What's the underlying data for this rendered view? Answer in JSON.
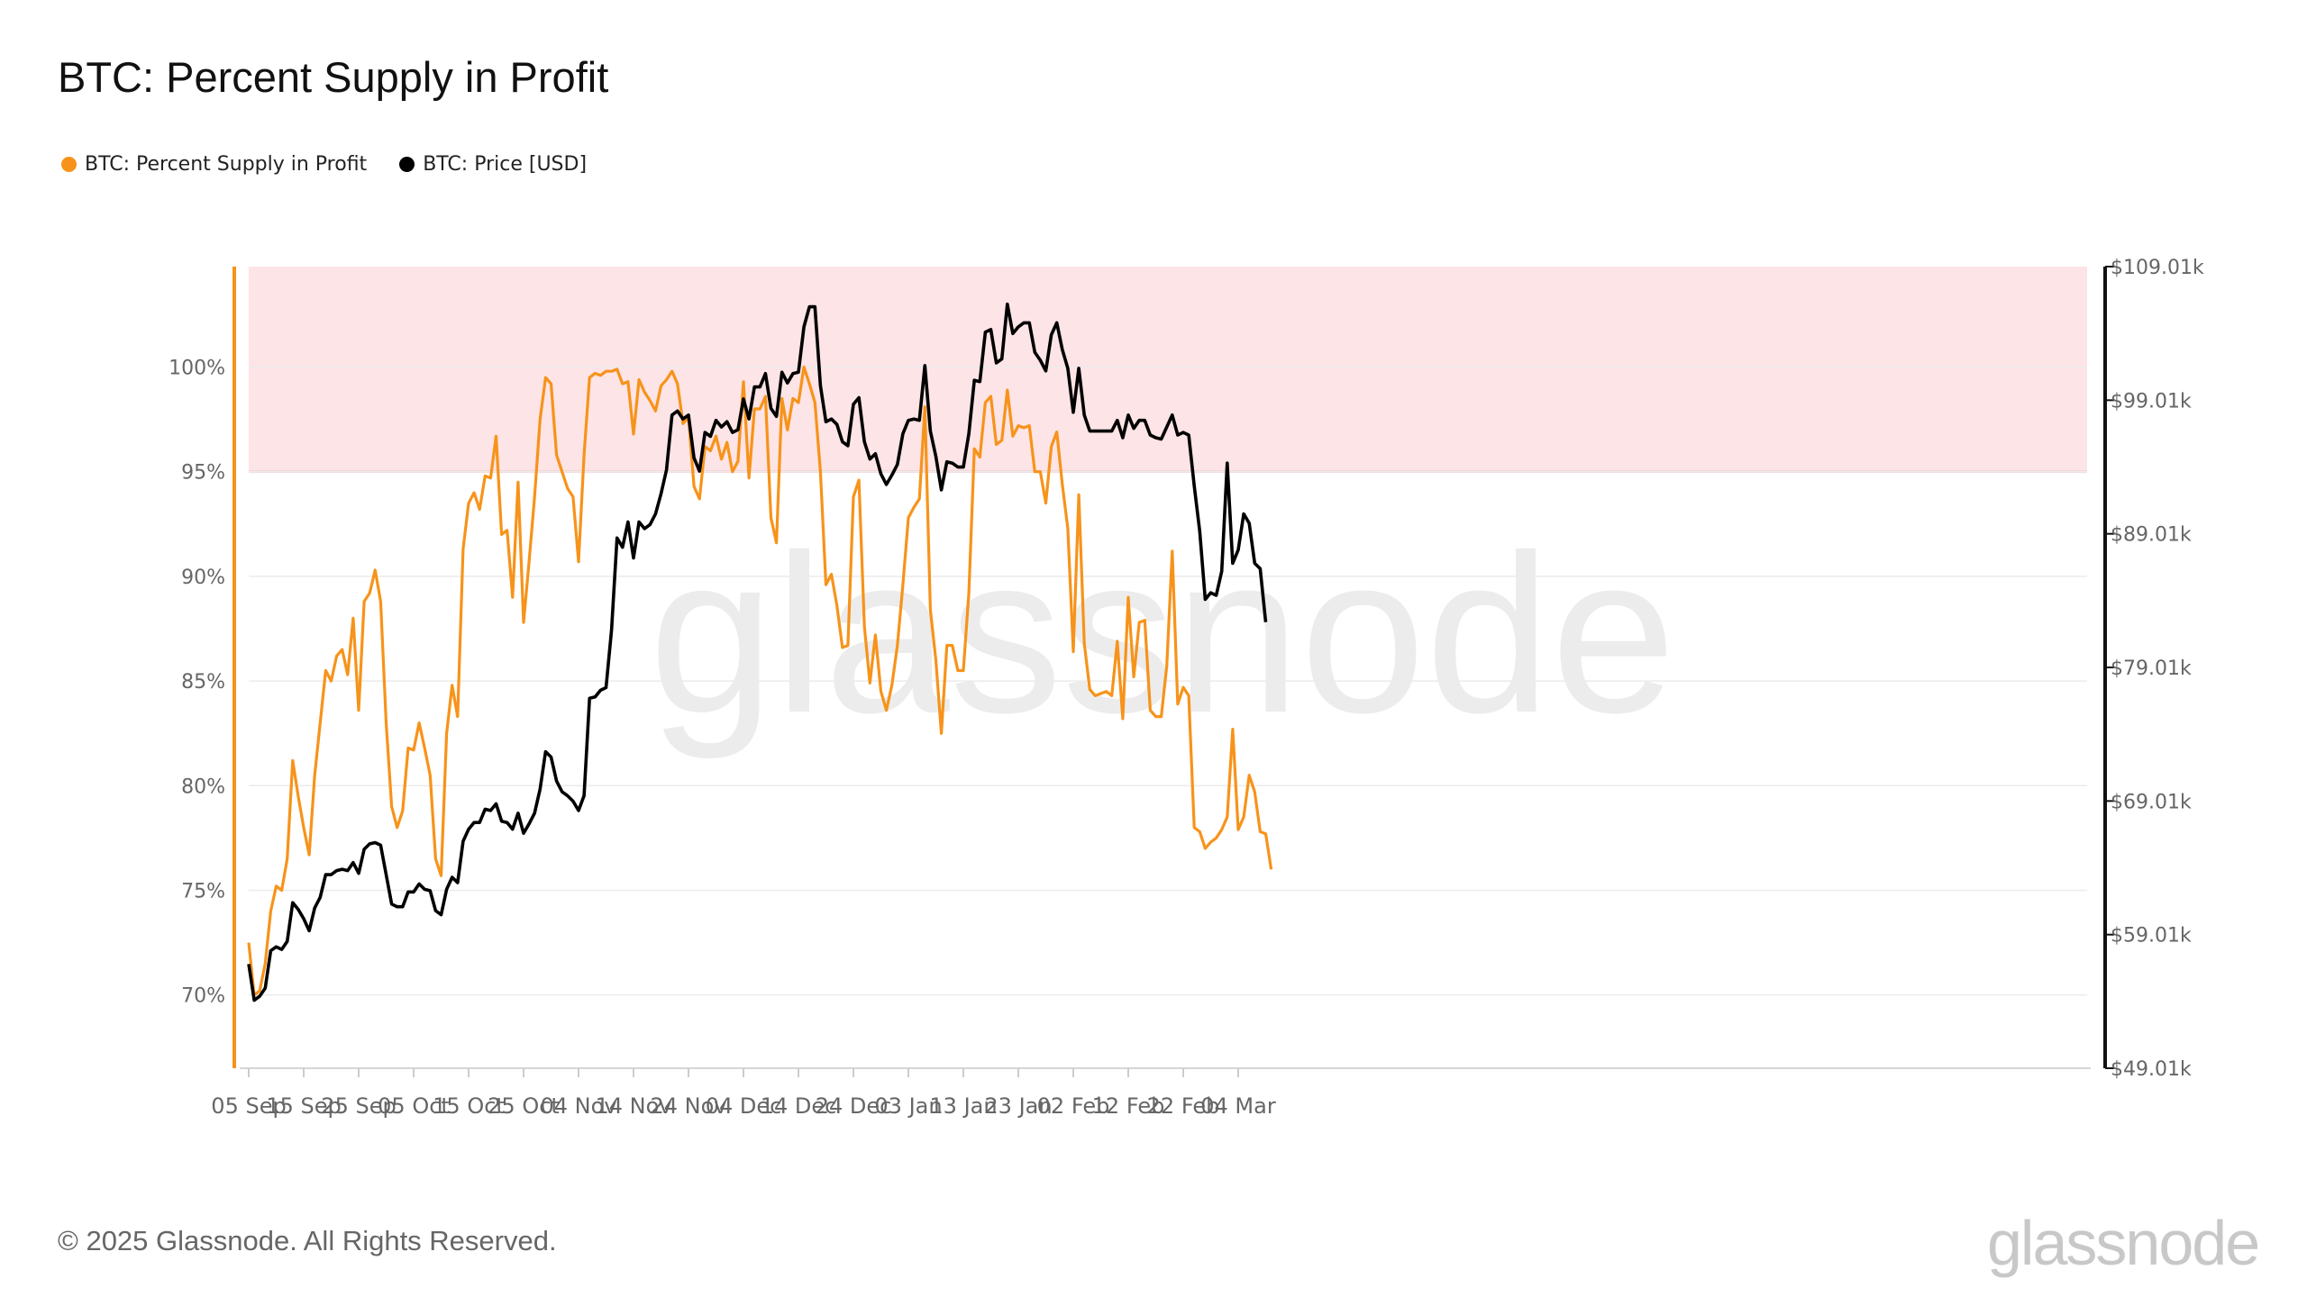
{
  "title": "BTC: Percent Supply in Profit",
  "footer": "© 2025 Glassnode. All Rights Reserved.",
  "brand": "glassnode",
  "watermark": "glassnode",
  "legend": [
    {
      "label": "BTC: Percent Supply in Profit",
      "color": "#f7931a"
    },
    {
      "label": "BTC: Price [USD]",
      "color": "#000000"
    }
  ],
  "chart_data": {
    "type": "line",
    "x_start": "2024-09-05",
    "x_ticks": [
      "05 Sep",
      "15 Sep",
      "25 Sep",
      "05 Oct",
      "15 Oct",
      "25 Oct",
      "04 Nov",
      "14 Nov",
      "24 Nov",
      "04 Dec",
      "14 Dec",
      "24 Dec",
      "03 Jan",
      "13 Jan",
      "23 Jan",
      "02 Feb",
      "12 Feb",
      "22 Feb",
      "04 Mar"
    ],
    "y_left": {
      "ticks": [
        70,
        75,
        80,
        85,
        90,
        95,
        100
      ],
      "labels": [
        "70%",
        "75%",
        "80%",
        "85%",
        "90%",
        "95%",
        "100%"
      ],
      "range": [
        66.5,
        104.8
      ]
    },
    "y_right": {
      "ticks": [
        49.01,
        59.01,
        69.01,
        79.01,
        89.01,
        99.01,
        109.01
      ],
      "labels": [
        "$49.01k",
        "$59.01k",
        "$69.01k",
        "$79.01k",
        "$89.01k",
        "$99.01k",
        "$109.01k"
      ],
      "range": [
        49.01,
        109.01
      ]
    },
    "shaded_region": {
      "from": 95,
      "to": 104.8,
      "axis": "left",
      "color": "#fde4e6",
      "line_color": "#f2a2a8"
    },
    "grid": true,
    "legend_position": "top-left",
    "series": [
      {
        "name": "BTC: Percent Supply in Profit",
        "axis": "left",
        "color": "#f7931a",
        "values": [
          72.5,
          70.0,
          70.2,
          71.5,
          74.0,
          75.2,
          75.0,
          76.5,
          81.2,
          79.5,
          78.0,
          76.7,
          80.5,
          83.0,
          85.5,
          85.0,
          86.2,
          86.5,
          85.3,
          88.0,
          83.6,
          88.8,
          89.2,
          90.3,
          88.8,
          83.0,
          79.0,
          78.0,
          78.8,
          81.8,
          81.7,
          83.0,
          81.8,
          80.5,
          76.5,
          75.7,
          82.5,
          84.8,
          83.3,
          91.3,
          93.5,
          94.0,
          93.2,
          94.8,
          94.7,
          96.7,
          92.0,
          92.2,
          89.0,
          94.5,
          87.8,
          90.7,
          93.8,
          97.5,
          99.5,
          99.2,
          95.8,
          95.0,
          94.2,
          93.8,
          90.7,
          95.8,
          99.5,
          99.7,
          99.6,
          99.8,
          99.8,
          99.9,
          99.2,
          99.3,
          96.8,
          99.4,
          98.8,
          98.4,
          97.9,
          99.1,
          99.4,
          99.8,
          99.2,
          97.3,
          97.6,
          94.3,
          93.7,
          96.2,
          96.0,
          96.7,
          95.6,
          96.4,
          95.0,
          95.5,
          99.3,
          94.7,
          98.0,
          98.0,
          98.6,
          92.8,
          91.6,
          98.5,
          97.0,
          98.5,
          98.3,
          100.0,
          99.2,
          98.3,
          95.0,
          89.6,
          90.1,
          88.6,
          86.6,
          86.7,
          93.8,
          94.6,
          87.6,
          84.9,
          87.2,
          84.5,
          83.6,
          84.8,
          86.7,
          89.6,
          92.8,
          93.3,
          93.7,
          98.1,
          88.4,
          86.0,
          82.5,
          86.7,
          86.7,
          85.5,
          85.5,
          89.2,
          96.1,
          95.7,
          98.3,
          98.6,
          96.3,
          96.5,
          98.9,
          96.7,
          97.2,
          97.1,
          97.2,
          95.0,
          95.0,
          93.5,
          96.2,
          96.9,
          94.4,
          92.3,
          86.4,
          93.9,
          86.8,
          84.6,
          84.3,
          84.4,
          84.5,
          84.3,
          86.9,
          83.2,
          89.0,
          85.2,
          87.8,
          87.9,
          83.6,
          83.3,
          83.3,
          85.7,
          91.2,
          83.9,
          84.7,
          84.3,
          78.0,
          77.8,
          77.0,
          77.3,
          77.5,
          77.9,
          78.5,
          82.7,
          77.9,
          78.5,
          80.5,
          79.7,
          77.8,
          77.7,
          76.0
        ]
      },
      {
        "name": "BTC: Price [USD]",
        "axis": "right",
        "color": "#000000",
        "values": [
          56.8,
          54.1,
          54.4,
          55.0,
          57.8,
          58.1,
          57.9,
          58.5,
          61.4,
          60.9,
          60.2,
          59.3,
          61.0,
          61.8,
          63.5,
          63.5,
          63.8,
          63.9,
          63.8,
          64.4,
          63.6,
          65.4,
          65.8,
          65.9,
          65.7,
          63.5,
          61.3,
          61.1,
          61.1,
          62.2,
          62.2,
          62.8,
          62.4,
          62.3,
          60.8,
          60.5,
          62.4,
          63.3,
          62.9,
          66.0,
          66.9,
          67.4,
          67.4,
          68.4,
          68.3,
          68.8,
          67.5,
          67.4,
          66.9,
          68.1,
          66.6,
          67.3,
          68.1,
          69.9,
          72.7,
          72.3,
          70.5,
          69.7,
          69.4,
          69.0,
          68.3,
          69.4,
          76.7,
          76.8,
          77.3,
          77.5,
          81.8,
          88.7,
          88.0,
          89.9,
          87.2,
          89.9,
          89.4,
          89.7,
          90.5,
          92.0,
          93.8,
          97.9,
          98.2,
          97.6,
          97.9,
          94.7,
          93.7,
          96.6,
          96.3,
          97.5,
          97.0,
          97.4,
          96.6,
          96.8,
          99.1,
          97.6,
          100.0,
          100.0,
          101.0,
          98.4,
          97.8,
          101.1,
          100.3,
          101.0,
          101.1,
          104.5,
          106.0,
          106.0,
          100.1,
          97.4,
          97.6,
          97.2,
          95.9,
          95.6,
          98.7,
          99.2,
          95.9,
          94.6,
          95.0,
          93.5,
          92.7,
          93.4,
          94.2,
          96.5,
          97.5,
          97.6,
          97.5,
          101.6,
          96.7,
          94.8,
          92.3,
          94.4,
          94.3,
          94.0,
          94.0,
          96.5,
          100.5,
          100.4,
          104.1,
          104.3,
          101.8,
          102.1,
          106.2,
          104.0,
          104.5,
          104.8,
          104.8,
          102.6,
          102.0,
          101.2,
          103.9,
          104.8,
          102.8,
          101.4,
          98.1,
          101.4,
          97.9,
          96.7,
          96.7,
          96.7,
          96.7,
          96.7,
          97.5,
          96.2,
          97.9,
          96.9,
          97.5,
          97.5,
          96.4,
          96.2,
          96.1,
          97.0,
          97.9,
          96.4,
          96.6,
          96.4,
          92.6,
          89.2,
          84.1,
          84.6,
          84.4,
          86.2,
          94.3,
          86.8,
          87.8,
          90.5,
          89.8,
          86.8,
          86.4,
          82.4
        ]
      }
    ]
  }
}
